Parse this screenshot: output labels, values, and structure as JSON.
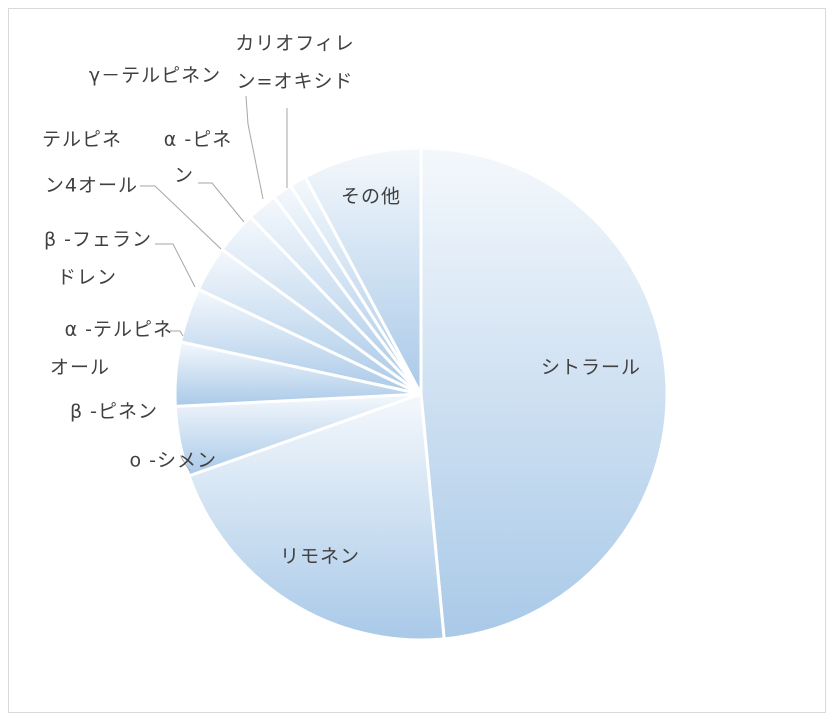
{
  "chart_data": {
    "type": "pie",
    "title": "",
    "categories": [
      "シトラール",
      "リモネン",
      "o -シメン",
      "β -ピネン",
      "α -テルピネオール",
      "β -フェランドレン",
      "テルピネン4オール",
      "α -ピネン",
      "γ－テルピネン",
      "カリオフィレン=オキシド",
      "その他"
    ],
    "label_lines": [
      [
        "シトラール"
      ],
      [
        "リモネン"
      ],
      [
        "o -シメン"
      ],
      [
        "β -ピネン"
      ],
      [
        "α -テルピネ",
        "オール"
      ],
      [
        "β -フェラン",
        "ドレン"
      ],
      [
        "テルピネ",
        "ン4オール"
      ],
      [
        "α -ピネ",
        "ン"
      ],
      [
        "γ－テルピネン"
      ],
      [
        "カリオフィレ",
        "ン=オキシド"
      ],
      [
        "その他"
      ]
    ],
    "values": [
      48.5,
      21.1,
      4.6,
      4.2,
      3.6,
      3.0,
      2.8,
      2.0,
      1.3,
      1.1,
      7.8
    ],
    "colors": {
      "gradient_light": "#f4f8fc",
      "gradient_dark": "#a9c9e8",
      "slice_border": "#ffffff",
      "leader_line": "#a6a6a6",
      "label_text": "#404040",
      "frame_border": "#d9d9d9"
    },
    "legend": "none",
    "start_angle_deg": 0,
    "direction": "clockwise"
  }
}
